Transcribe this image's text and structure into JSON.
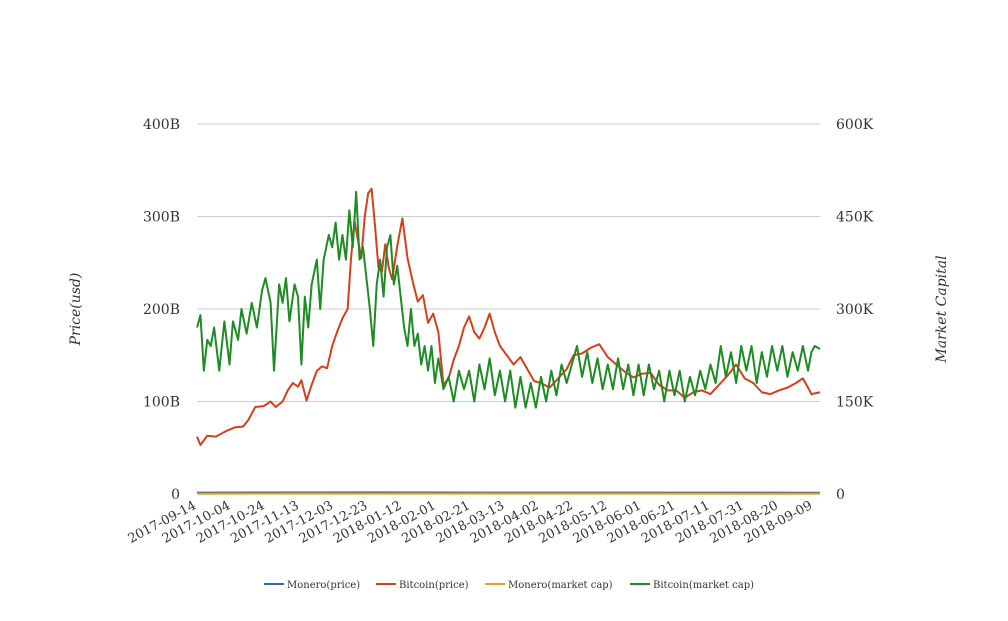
{
  "chart_data": {
    "type": "line",
    "title": "",
    "y_left_label": "Price(usd)",
    "y_right_label": "Market Capital",
    "y_left_range": [
      0,
      400000000000
    ],
    "y_right_range": [
      0,
      600000
    ],
    "y_left_ticks": [
      "0",
      "100B",
      "200B",
      "300B",
      "400B"
    ],
    "y_right_ticks": [
      "0",
      "150K",
      "300K",
      "450K",
      "600K"
    ],
    "x_range": [
      "2017-09-14",
      "2018-09-13"
    ],
    "x_ticks": [
      "2017-09-14",
      "2017-10-04",
      "2017-10-24",
      "2017-11-13",
      "2017-12-03",
      "2017-12-23",
      "2018-01-12",
      "2018-02-01",
      "2018-02-21",
      "2018-03-13",
      "2018-04-02",
      "2018-04-22",
      "2018-05-12",
      "2018-06-01",
      "2018-06-21",
      "2018-07-11",
      "2018-07-31",
      "2018-08-20",
      "2018-09-09"
    ],
    "grid": true,
    "legend_position": "bottom",
    "series": [
      {
        "name": "Monero(price)",
        "axis": "left",
        "color": "#2c6fa8",
        "points": [
          [
            "2017-09-14",
            1500000000
          ],
          [
            "2017-12-23",
            1800000000
          ],
          [
            "2018-03-13",
            1500000000
          ],
          [
            "2018-09-13",
            1400000000
          ]
        ]
      },
      {
        "name": "Bitcoin(price)",
        "axis": "left",
        "color": "#d2401c",
        "points": [
          [
            "2017-09-14",
            62000000000
          ],
          [
            "2017-09-16",
            53000000000
          ],
          [
            "2017-09-20",
            63000000000
          ],
          [
            "2017-09-25",
            62000000000
          ],
          [
            "2017-10-01",
            68000000000
          ],
          [
            "2017-10-06",
            72000000000
          ],
          [
            "2017-10-11",
            73000000000
          ],
          [
            "2017-10-14",
            80000000000
          ],
          [
            "2017-10-18",
            94000000000
          ],
          [
            "2017-10-23",
            95000000000
          ],
          [
            "2017-10-27",
            100000000000
          ],
          [
            "2017-10-30",
            94000000000
          ],
          [
            "2017-11-03",
            100000000000
          ],
          [
            "2017-11-06",
            112000000000
          ],
          [
            "2017-11-09",
            120000000000
          ],
          [
            "2017-11-12",
            116000000000
          ],
          [
            "2017-11-14",
            123000000000
          ],
          [
            "2017-11-17",
            101000000000
          ],
          [
            "2017-11-20",
            118000000000
          ],
          [
            "2017-11-23",
            133000000000
          ],
          [
            "2017-11-26",
            138000000000
          ],
          [
            "2017-11-29",
            136000000000
          ],
          [
            "2017-12-02",
            160000000000
          ],
          [
            "2017-12-05",
            176000000000
          ],
          [
            "2017-12-08",
            190000000000
          ],
          [
            "2017-12-11",
            200000000000
          ],
          [
            "2017-12-13",
            255000000000
          ],
          [
            "2017-12-15",
            295000000000
          ],
          [
            "2017-12-17",
            275000000000
          ],
          [
            "2017-12-19",
            255000000000
          ],
          [
            "2017-12-21",
            300000000000
          ],
          [
            "2017-12-23",
            325000000000
          ],
          [
            "2017-12-25",
            330000000000
          ],
          [
            "2017-12-27",
            290000000000
          ],
          [
            "2017-12-29",
            245000000000
          ],
          [
            "2017-12-31",
            240000000000
          ],
          [
            "2018-01-02",
            270000000000
          ],
          [
            "2018-01-04",
            245000000000
          ],
          [
            "2018-01-06",
            232000000000
          ],
          [
            "2018-01-09",
            268000000000
          ],
          [
            "2018-01-12",
            298000000000
          ],
          [
            "2018-01-15",
            255000000000
          ],
          [
            "2018-01-18",
            230000000000
          ],
          [
            "2018-01-21",
            208000000000
          ],
          [
            "2018-01-24",
            215000000000
          ],
          [
            "2018-01-27",
            185000000000
          ],
          [
            "2018-01-30",
            195000000000
          ],
          [
            "2018-02-02",
            175000000000
          ],
          [
            "2018-02-05",
            118000000000
          ],
          [
            "2018-02-08",
            125000000000
          ],
          [
            "2018-02-11",
            145000000000
          ],
          [
            "2018-02-14",
            160000000000
          ],
          [
            "2018-02-17",
            180000000000
          ],
          [
            "2018-02-20",
            192000000000
          ],
          [
            "2018-02-23",
            175000000000
          ],
          [
            "2018-02-26",
            168000000000
          ],
          [
            "2018-03-01",
            180000000000
          ],
          [
            "2018-03-04",
            195000000000
          ],
          [
            "2018-03-07",
            175000000000
          ],
          [
            "2018-03-10",
            160000000000
          ],
          [
            "2018-03-14",
            150000000000
          ],
          [
            "2018-03-18",
            140000000000
          ],
          [
            "2018-03-22",
            148000000000
          ],
          [
            "2018-03-26",
            135000000000
          ],
          [
            "2018-03-30",
            122000000000
          ],
          [
            "2018-04-03",
            120000000000
          ],
          [
            "2018-04-08",
            115000000000
          ],
          [
            "2018-04-13",
            125000000000
          ],
          [
            "2018-04-18",
            135000000000
          ],
          [
            "2018-04-22",
            150000000000
          ],
          [
            "2018-04-27",
            152000000000
          ],
          [
            "2018-05-02",
            158000000000
          ],
          [
            "2018-05-07",
            162000000000
          ],
          [
            "2018-05-12",
            148000000000
          ],
          [
            "2018-05-17",
            140000000000
          ],
          [
            "2018-05-22",
            132000000000
          ],
          [
            "2018-05-27",
            126000000000
          ],
          [
            "2018-06-01",
            130000000000
          ],
          [
            "2018-06-06",
            131000000000
          ],
          [
            "2018-06-11",
            118000000000
          ],
          [
            "2018-06-16",
            112000000000
          ],
          [
            "2018-06-21",
            112000000000
          ],
          [
            "2018-06-26",
            104000000000
          ],
          [
            "2018-07-01",
            110000000000
          ],
          [
            "2018-07-06",
            112000000000
          ],
          [
            "2018-07-11",
            108000000000
          ],
          [
            "2018-07-16",
            118000000000
          ],
          [
            "2018-07-21",
            128000000000
          ],
          [
            "2018-07-26",
            140000000000
          ],
          [
            "2018-07-31",
            125000000000
          ],
          [
            "2018-08-05",
            120000000000
          ],
          [
            "2018-08-10",
            110000000000
          ],
          [
            "2018-08-15",
            108000000000
          ],
          [
            "2018-08-20",
            112000000000
          ],
          [
            "2018-08-25",
            115000000000
          ],
          [
            "2018-08-30",
            120000000000
          ],
          [
            "2018-09-03",
            125000000000
          ],
          [
            "2018-09-06",
            115000000000
          ],
          [
            "2018-09-08",
            108000000000
          ],
          [
            "2018-09-13",
            110000000000
          ]
        ]
      },
      {
        "name": "Monero(market cap)",
        "axis": "right",
        "color": "#e8a21a",
        "points": [
          [
            "2017-09-14",
            500
          ],
          [
            "2017-12-23",
            700
          ],
          [
            "2018-09-13",
            400
          ]
        ]
      },
      {
        "name": "Bitcoin(market cap)",
        "axis": "right",
        "color": "#1f8b24",
        "points": [
          [
            "2017-09-14",
            270000
          ],
          [
            "2017-09-16",
            290000
          ],
          [
            "2017-09-18",
            200000
          ],
          [
            "2017-09-20",
            250000
          ],
          [
            "2017-09-22",
            240000
          ],
          [
            "2017-09-24",
            270000
          ],
          [
            "2017-09-27",
            200000
          ],
          [
            "2017-09-30",
            280000
          ],
          [
            "2017-10-03",
            210000
          ],
          [
            "2017-10-05",
            280000
          ],
          [
            "2017-10-08",
            250000
          ],
          [
            "2017-10-10",
            300000
          ],
          [
            "2017-10-13",
            260000
          ],
          [
            "2017-10-16",
            310000
          ],
          [
            "2017-10-19",
            270000
          ],
          [
            "2017-10-22",
            330000
          ],
          [
            "2017-10-24",
            350000
          ],
          [
            "2017-10-27",
            310000
          ],
          [
            "2017-10-29",
            200000
          ],
          [
            "2017-11-01",
            340000
          ],
          [
            "2017-11-03",
            310000
          ],
          [
            "2017-11-05",
            350000
          ],
          [
            "2017-11-07",
            280000
          ],
          [
            "2017-11-10",
            340000
          ],
          [
            "2017-11-12",
            320000
          ],
          [
            "2017-11-14",
            210000
          ],
          [
            "2017-11-16",
            320000
          ],
          [
            "2017-11-18",
            270000
          ],
          [
            "2017-11-20",
            340000
          ],
          [
            "2017-11-23",
            380000
          ],
          [
            "2017-11-25",
            300000
          ],
          [
            "2017-11-27",
            380000
          ],
          [
            "2017-11-30",
            420000
          ],
          [
            "2017-12-02",
            400000
          ],
          [
            "2017-12-04",
            440000
          ],
          [
            "2017-12-06",
            380000
          ],
          [
            "2017-12-08",
            420000
          ],
          [
            "2017-12-10",
            380000
          ],
          [
            "2017-12-12",
            460000
          ],
          [
            "2017-12-14",
            400000
          ],
          [
            "2017-12-16",
            490000
          ],
          [
            "2017-12-18",
            380000
          ],
          [
            "2017-12-20",
            400000
          ],
          [
            "2017-12-22",
            350000
          ],
          [
            "2017-12-24",
            300000
          ],
          [
            "2017-12-26",
            240000
          ],
          [
            "2017-12-28",
            340000
          ],
          [
            "2017-12-30",
            380000
          ],
          [
            "2018-01-01",
            320000
          ],
          [
            "2018-01-03",
            400000
          ],
          [
            "2018-01-05",
            420000
          ],
          [
            "2018-01-07",
            340000
          ],
          [
            "2018-01-09",
            370000
          ],
          [
            "2018-01-11",
            320000
          ],
          [
            "2018-01-13",
            270000
          ],
          [
            "2018-01-15",
            240000
          ],
          [
            "2018-01-17",
            300000
          ],
          [
            "2018-01-19",
            240000
          ],
          [
            "2018-01-21",
            260000
          ],
          [
            "2018-01-23",
            210000
          ],
          [
            "2018-01-25",
            240000
          ],
          [
            "2018-01-27",
            200000
          ],
          [
            "2018-01-29",
            240000
          ],
          [
            "2018-01-31",
            180000
          ],
          [
            "2018-02-02",
            220000
          ],
          [
            "2018-02-05",
            170000
          ],
          [
            "2018-02-08",
            190000
          ],
          [
            "2018-02-11",
            150000
          ],
          [
            "2018-02-14",
            200000
          ],
          [
            "2018-02-17",
            170000
          ],
          [
            "2018-02-20",
            200000
          ],
          [
            "2018-02-23",
            150000
          ],
          [
            "2018-02-26",
            210000
          ],
          [
            "2018-03-01",
            170000
          ],
          [
            "2018-03-04",
            220000
          ],
          [
            "2018-03-07",
            160000
          ],
          [
            "2018-03-10",
            200000
          ],
          [
            "2018-03-13",
            150000
          ],
          [
            "2018-03-16",
            200000
          ],
          [
            "2018-03-19",
            140000
          ],
          [
            "2018-03-22",
            190000
          ],
          [
            "2018-03-25",
            140000
          ],
          [
            "2018-03-28",
            180000
          ],
          [
            "2018-03-31",
            140000
          ],
          [
            "2018-04-03",
            190000
          ],
          [
            "2018-04-06",
            150000
          ],
          [
            "2018-04-09",
            200000
          ],
          [
            "2018-04-12",
            160000
          ],
          [
            "2018-04-15",
            210000
          ],
          [
            "2018-04-18",
            180000
          ],
          [
            "2018-04-21",
            210000
          ],
          [
            "2018-04-24",
            240000
          ],
          [
            "2018-04-27",
            190000
          ],
          [
            "2018-04-30",
            230000
          ],
          [
            "2018-05-03",
            180000
          ],
          [
            "2018-05-06",
            220000
          ],
          [
            "2018-05-09",
            170000
          ],
          [
            "2018-05-12",
            210000
          ],
          [
            "2018-05-15",
            170000
          ],
          [
            "2018-05-18",
            220000
          ],
          [
            "2018-05-21",
            170000
          ],
          [
            "2018-05-24",
            210000
          ],
          [
            "2018-05-27",
            160000
          ],
          [
            "2018-05-30",
            210000
          ],
          [
            "2018-06-02",
            160000
          ],
          [
            "2018-06-05",
            210000
          ],
          [
            "2018-06-08",
            170000
          ],
          [
            "2018-06-11",
            200000
          ],
          [
            "2018-06-14",
            150000
          ],
          [
            "2018-06-17",
            200000
          ],
          [
            "2018-06-20",
            160000
          ],
          [
            "2018-06-23",
            200000
          ],
          [
            "2018-06-26",
            150000
          ],
          [
            "2018-06-29",
            190000
          ],
          [
            "2018-07-02",
            160000
          ],
          [
            "2018-07-05",
            200000
          ],
          [
            "2018-07-08",
            170000
          ],
          [
            "2018-07-11",
            210000
          ],
          [
            "2018-07-14",
            180000
          ],
          [
            "2018-07-17",
            240000
          ],
          [
            "2018-07-20",
            190000
          ],
          [
            "2018-07-23",
            230000
          ],
          [
            "2018-07-26",
            180000
          ],
          [
            "2018-07-29",
            240000
          ],
          [
            "2018-08-01",
            200000
          ],
          [
            "2018-08-04",
            240000
          ],
          [
            "2018-08-07",
            180000
          ],
          [
            "2018-08-10",
            230000
          ],
          [
            "2018-08-13",
            190000
          ],
          [
            "2018-08-16",
            240000
          ],
          [
            "2018-08-19",
            200000
          ],
          [
            "2018-08-22",
            240000
          ],
          [
            "2018-08-25",
            190000
          ],
          [
            "2018-08-28",
            230000
          ],
          [
            "2018-08-31",
            200000
          ],
          [
            "2018-09-03",
            240000
          ],
          [
            "2018-09-06",
            200000
          ],
          [
            "2018-09-08",
            230000
          ],
          [
            "2018-09-10",
            240000
          ],
          [
            "2018-09-13",
            235000
          ]
        ]
      }
    ]
  }
}
